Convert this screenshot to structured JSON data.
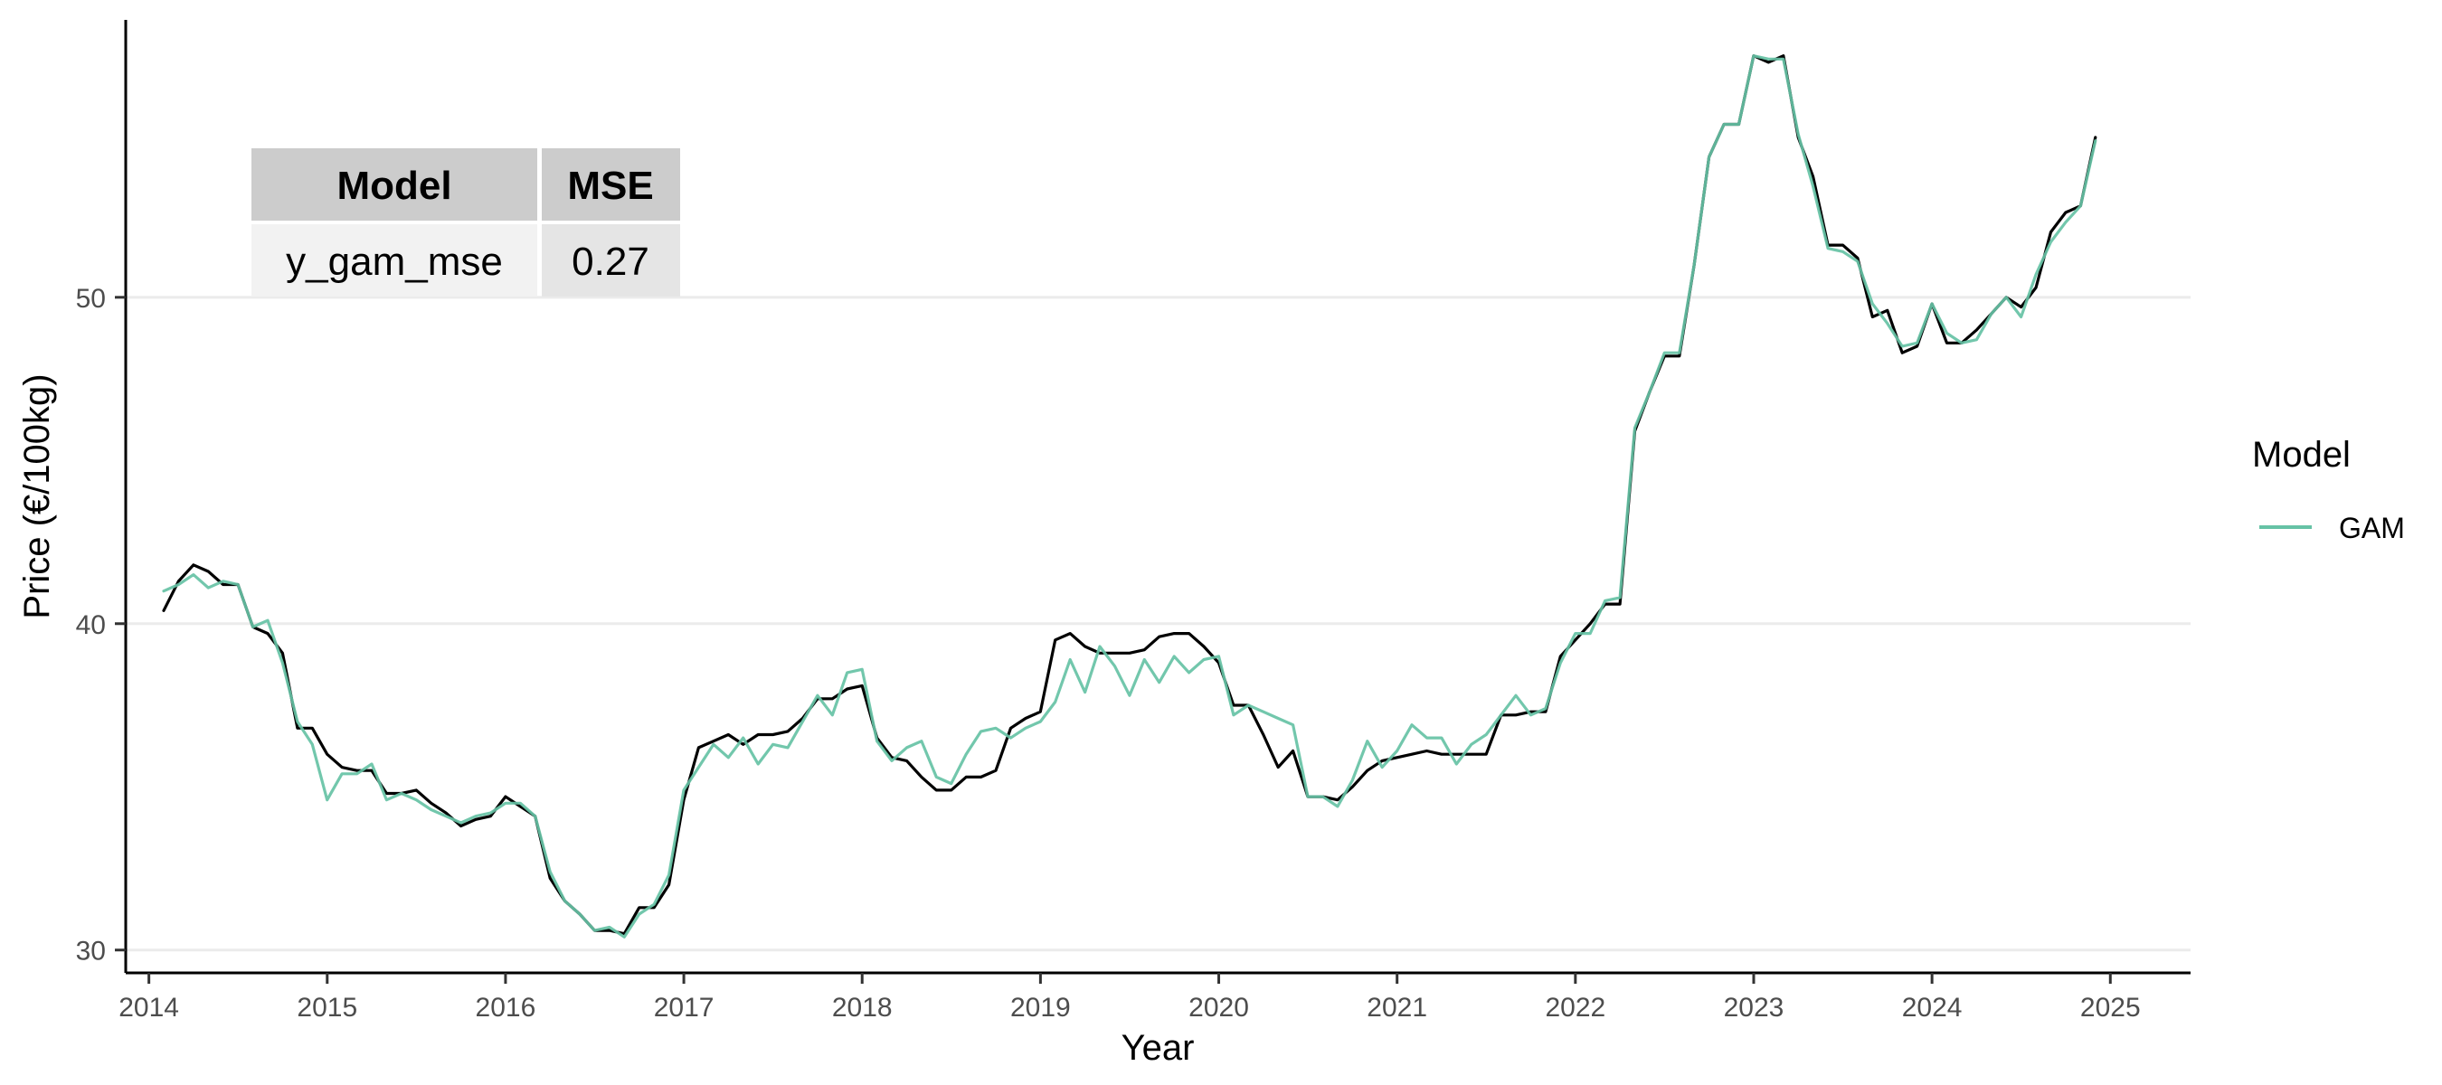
{
  "colors": {
    "actual": "#000000",
    "gam": "#66c2a5",
    "grid": "#ebebeb",
    "table_header_bg": "#cccccc",
    "table_cell_bg_1": "#f2f2f2",
    "table_cell_bg_2": "#e5e5e5"
  },
  "mse_table": {
    "headers": [
      "Model",
      "MSE"
    ],
    "rows": [
      [
        "y_gam_mse",
        "0.27"
      ]
    ]
  },
  "chart_data": {
    "type": "line",
    "title": "",
    "xlabel": "Year",
    "ylabel": "Price (€/100kg)",
    "xlim": [
      2013.87,
      2025.45
    ],
    "ylim": [
      29.3,
      58.5
    ],
    "x_ticks": [
      2014,
      2015,
      2016,
      2017,
      2018,
      2019,
      2020,
      2021,
      2022,
      2023,
      2024,
      2025
    ],
    "y_ticks": [
      30,
      40,
      50
    ],
    "y_grid": true,
    "legend": {
      "title": "Model",
      "position": "right",
      "entries": [
        "GAM"
      ]
    },
    "series": [
      {
        "key": "actual",
        "start_year": 2014.083,
        "step": 0.0833333,
        "values": [
          40.4,
          41.3,
          41.8,
          41.6,
          41.2,
          41.2,
          39.9,
          39.7,
          39.1,
          36.8,
          36.8,
          36.0,
          35.6,
          35.5,
          35.5,
          34.8,
          34.8,
          34.9,
          34.5,
          34.2,
          33.8,
          34.0,
          34.1,
          34.7,
          34.4,
          34.1,
          32.2,
          31.5,
          31.1,
          30.6,
          30.6,
          30.5,
          31.3,
          31.3,
          32.0,
          34.6,
          36.2,
          36.4,
          36.6,
          36.3,
          36.6,
          36.6,
          36.7,
          37.1,
          37.7,
          37.7,
          38.0,
          38.1,
          36.5,
          35.9,
          35.8,
          35.3,
          34.9,
          34.9,
          35.3,
          35.3,
          35.5,
          36.8,
          37.1,
          37.3,
          39.5,
          39.7,
          39.3,
          39.1,
          39.1,
          39.1,
          39.2,
          39.6,
          39.7,
          39.7,
          39.3,
          38.8,
          37.5,
          37.5,
          36.6,
          35.6,
          36.1,
          34.7,
          34.7,
          34.6,
          35.0,
          35.5,
          35.8,
          35.9,
          36.0,
          36.1,
          36.0,
          36.0,
          36.0,
          36.0,
          37.2,
          37.2,
          37.3,
          37.3,
          39.0,
          39.5,
          40.0,
          40.6,
          40.6,
          45.9,
          47.1,
          48.2,
          48.2,
          51.0,
          54.3,
          55.3,
          55.3,
          57.4,
          57.2,
          57.4,
          54.9,
          53.7,
          51.6,
          51.6,
          51.2,
          49.4,
          49.6,
          48.3,
          48.5,
          49.8,
          48.6,
          48.6,
          49.0,
          49.5,
          50.0,
          49.7,
          50.3,
          52.0,
          52.6,
          52.8,
          54.9
        ]
      },
      {
        "key": "gam",
        "name": "GAM",
        "start_year": 2014.083,
        "step": 0.0833333,
        "values": [
          41.0,
          41.2,
          41.5,
          41.1,
          41.3,
          41.2,
          39.9,
          40.1,
          38.8,
          37.0,
          36.3,
          34.6,
          35.4,
          35.4,
          35.7,
          34.6,
          34.8,
          34.6,
          34.3,
          34.1,
          33.9,
          34.1,
          34.2,
          34.5,
          34.5,
          34.1,
          32.4,
          31.5,
          31.1,
          30.6,
          30.7,
          30.4,
          31.1,
          31.4,
          32.3,
          34.9,
          35.6,
          36.3,
          35.9,
          36.5,
          35.7,
          36.3,
          36.2,
          37.0,
          37.8,
          37.2,
          38.5,
          38.6,
          36.4,
          35.8,
          36.2,
          36.4,
          35.3,
          35.1,
          36.0,
          36.7,
          36.8,
          36.5,
          36.8,
          37.0,
          37.6,
          38.9,
          37.9,
          39.3,
          38.7,
          37.8,
          38.9,
          38.2,
          39.0,
          38.5,
          38.9,
          39.0,
          37.2,
          37.5,
          37.3,
          37.1,
          36.9,
          34.7,
          34.7,
          34.4,
          35.2,
          36.4,
          35.6,
          36.1,
          36.9,
          36.5,
          36.5,
          35.7,
          36.3,
          36.6,
          37.2,
          37.8,
          37.2,
          37.4,
          38.8,
          39.7,
          39.7,
          40.7,
          40.8,
          46.0,
          47.1,
          48.3,
          48.3,
          51.0,
          54.3,
          55.3,
          55.3,
          57.4,
          57.3,
          57.3,
          55.0,
          53.4,
          51.5,
          51.4,
          51.1,
          49.8,
          49.2,
          48.5,
          48.6,
          49.8,
          48.9,
          48.6,
          48.7,
          49.5,
          50.0,
          49.4,
          50.7,
          51.7,
          52.3,
          52.8,
          54.8
        ]
      }
    ]
  }
}
